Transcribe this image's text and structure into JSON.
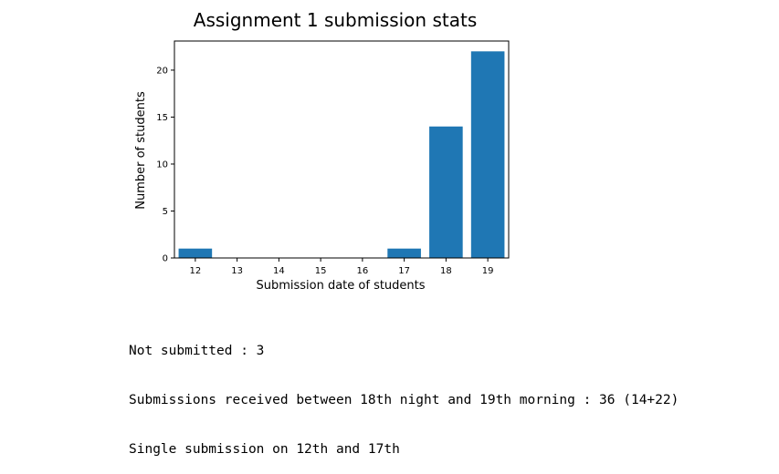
{
  "chart_data": {
    "type": "bar",
    "title": "Assignment 1 submission stats",
    "xlabel": "Submission date of students",
    "ylabel": "Number of students",
    "categories": [
      "12",
      "13",
      "14",
      "15",
      "16",
      "17",
      "18",
      "19"
    ],
    "values": [
      1,
      0,
      0,
      0,
      0,
      1,
      14,
      22
    ],
    "ylim": [
      0,
      23.1
    ],
    "yticks": [
      0,
      5,
      10,
      15,
      20
    ],
    "grid": false,
    "bar_color": "#1f77b4"
  },
  "output": {
    "lines": [
      "Not submitted : 3",
      "Submissions received between 18th night and 19th morning : 36 (14+22)",
      "Single submission on 12th and 17th"
    ]
  }
}
